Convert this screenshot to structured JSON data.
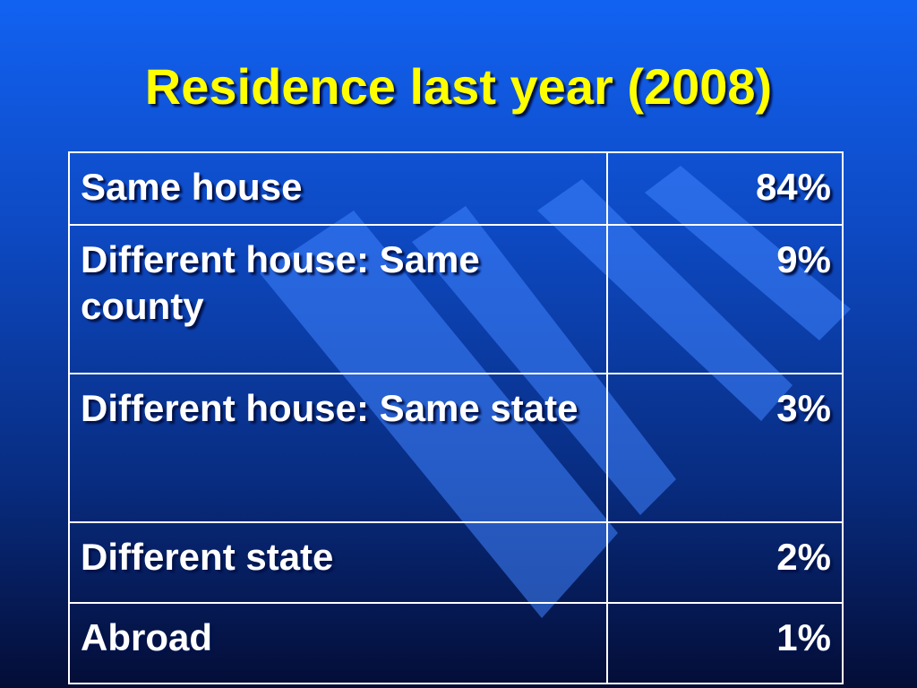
{
  "slide": {
    "title": "Residence last year (2008)"
  },
  "table": {
    "rows": [
      {
        "label": "Same house",
        "value": "84%"
      },
      {
        "label": "Different house:  Same county",
        "value": "9%"
      },
      {
        "label": "Different house:  Same state",
        "value": "3%"
      },
      {
        "label": "Different state",
        "value": "2%"
      },
      {
        "label": "Abroad",
        "value": "1%"
      }
    ]
  },
  "colors": {
    "background_top": "#1262f2",
    "background_bottom": "#040d36",
    "title": "#ffff00",
    "text": "#ffffff",
    "border": "#ffffff"
  }
}
